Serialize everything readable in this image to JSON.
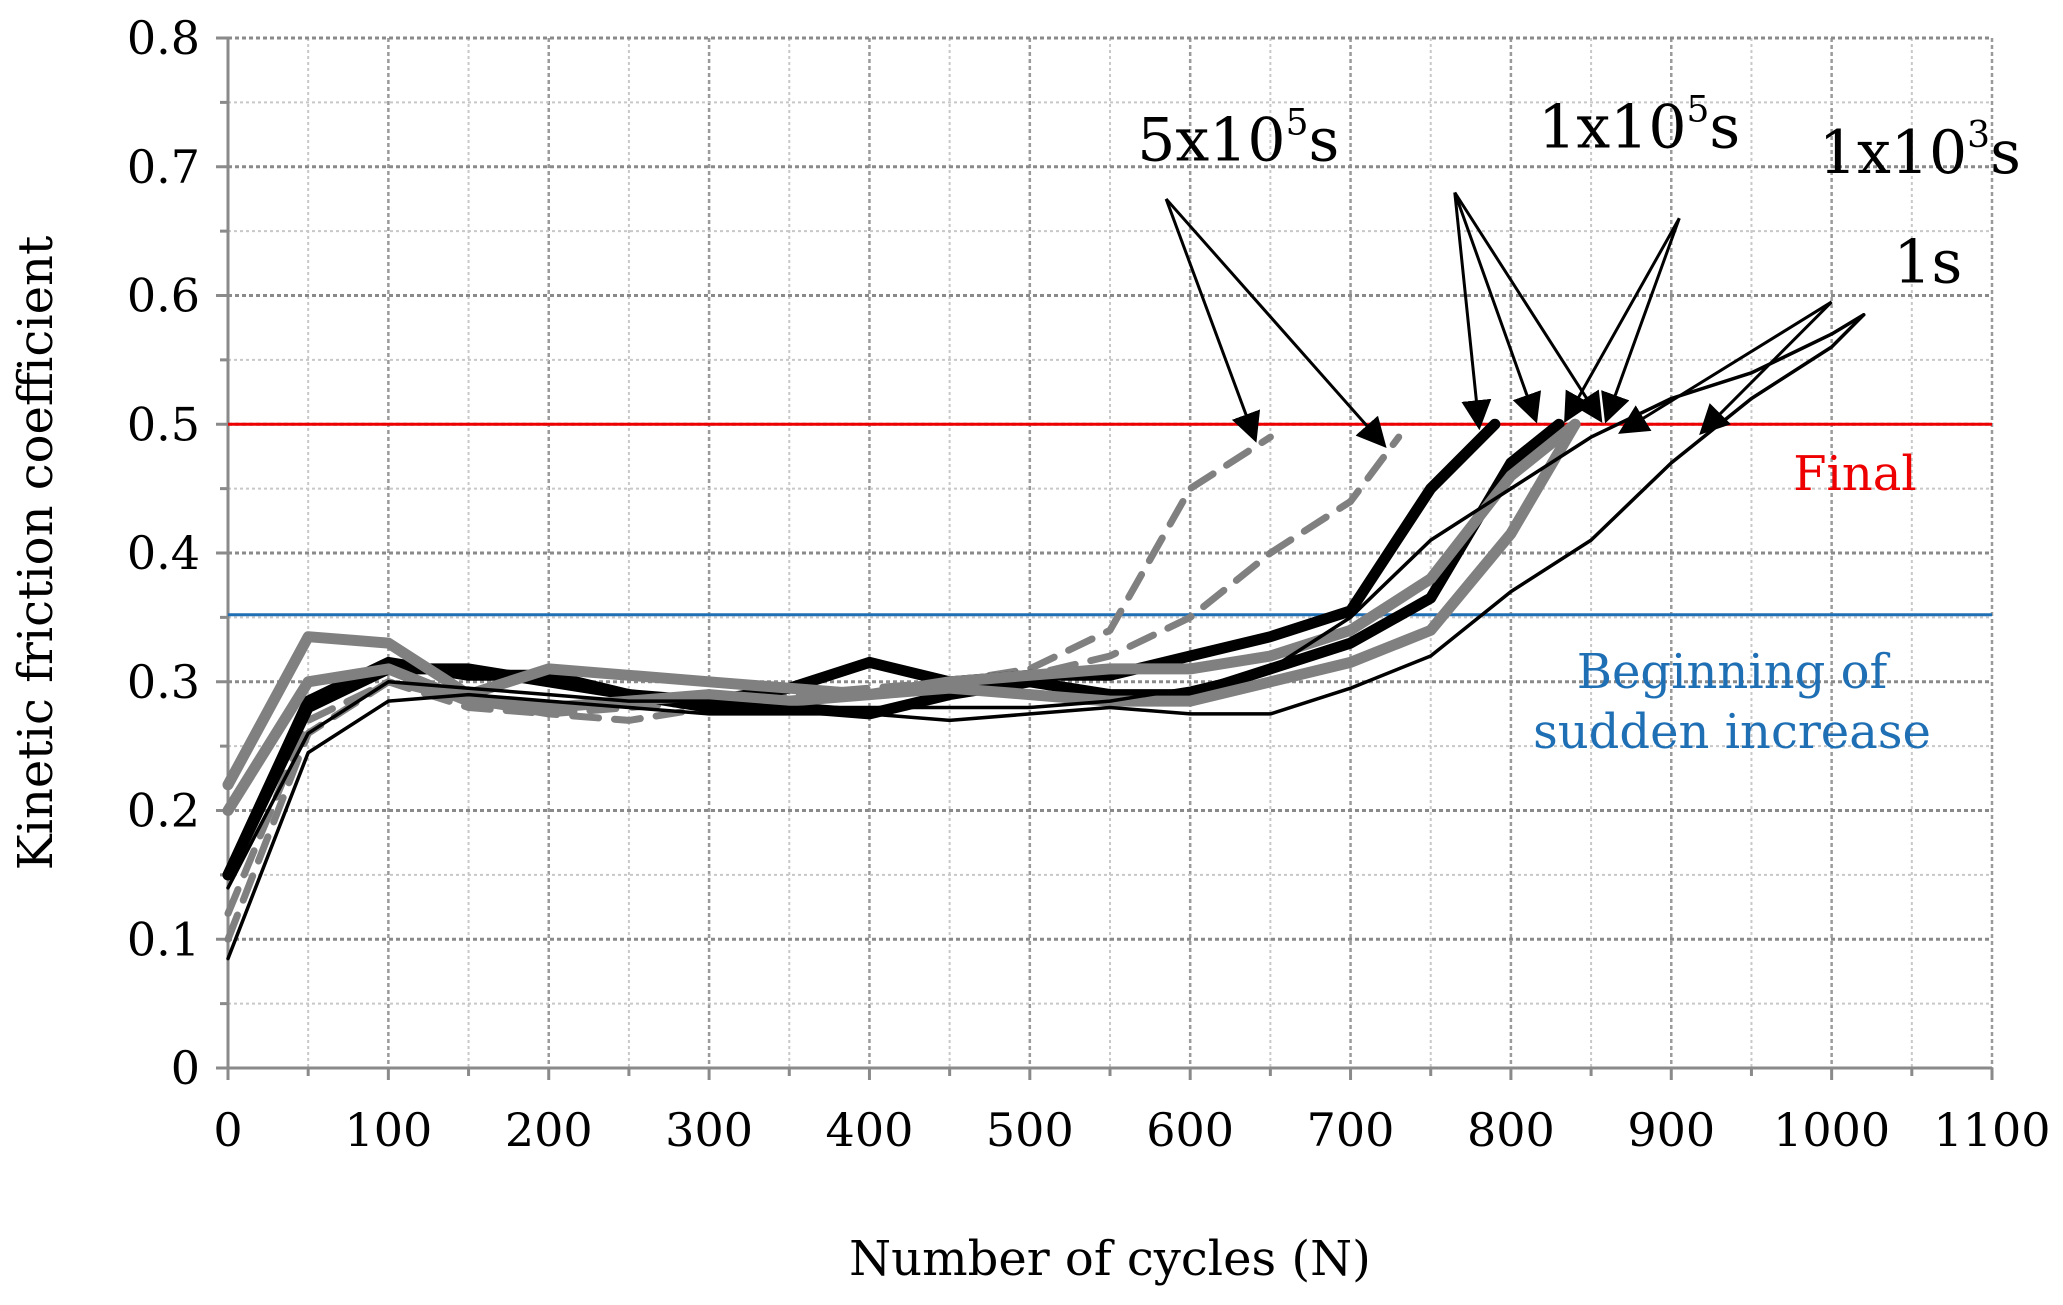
{
  "chart_data": {
    "type": "line",
    "title": "",
    "xlabel": "Number of cycles (N)",
    "ylabel": "Kinetic friction coefficient",
    "xlim": [
      0,
      1100
    ],
    "ylim": [
      0,
      0.8
    ],
    "x_ticks": [
      "0",
      "100",
      "200",
      "300",
      "400",
      "500",
      "600",
      "700",
      "800",
      "900",
      "1000",
      "1100"
    ],
    "y_ticks": [
      "0",
      "0.1",
      "0.2",
      "0.3",
      "0.4",
      "0.5",
      "0.6",
      "0.7",
      "0.8"
    ],
    "grid": true,
    "colors": {
      "black": "#000000",
      "gray": "#808080",
      "final": "#ee0000",
      "beginning": "#1f6fb5"
    },
    "reference_lines": [
      {
        "name": "Final",
        "y": 0.5,
        "color": "#ee0000",
        "label_lines": [
          "Final"
        ]
      },
      {
        "name": "Beginning of sudden increase",
        "y": 0.352,
        "color": "#1f6fb5",
        "label_lines": [
          "Beginning of",
          "sudden increase"
        ]
      }
    ],
    "series": [
      {
        "name": "5x10^5s (a)",
        "color": "#808080",
        "style": "dashed",
        "weight": "medium",
        "x": [
          0,
          50,
          100,
          150,
          200,
          250,
          300,
          350,
          400,
          450,
          500,
          550,
          600,
          650
        ],
        "y": [
          0.1,
          0.26,
          0.3,
          0.285,
          0.275,
          0.27,
          0.28,
          0.285,
          0.29,
          0.3,
          0.31,
          0.34,
          0.45,
          0.49
        ]
      },
      {
        "name": "5x10^5s (b)",
        "color": "#808080",
        "style": "dashed",
        "weight": "medium",
        "x": [
          0,
          50,
          100,
          150,
          200,
          250,
          300,
          350,
          400,
          450,
          500,
          550,
          600,
          650,
          700,
          730
        ],
        "y": [
          0.12,
          0.27,
          0.3,
          0.28,
          0.275,
          0.28,
          0.285,
          0.29,
          0.295,
          0.3,
          0.305,
          0.32,
          0.35,
          0.4,
          0.44,
          0.49
        ]
      },
      {
        "name": "1x10^5s (a)",
        "color": "#000000",
        "style": "solid",
        "weight": "heavy",
        "x": [
          0,
          50,
          100,
          150,
          200,
          250,
          300,
          350,
          400,
          450,
          500,
          550,
          600,
          650,
          700,
          750,
          790
        ],
        "y": [
          0.15,
          0.28,
          0.31,
          0.31,
          0.3,
          0.29,
          0.285,
          0.295,
          0.315,
          0.3,
          0.305,
          0.305,
          0.32,
          0.335,
          0.355,
          0.45,
          0.5
        ]
      },
      {
        "name": "1x10^5s (b)",
        "color": "#000000",
        "style": "solid",
        "weight": "heavy",
        "x": [
          0,
          50,
          100,
          150,
          200,
          250,
          300,
          350,
          400,
          450,
          500,
          550,
          600,
          650,
          700,
          750,
          800,
          830
        ],
        "y": [
          0.15,
          0.285,
          0.315,
          0.305,
          0.305,
          0.29,
          0.28,
          0.28,
          0.275,
          0.29,
          0.3,
          0.29,
          0.29,
          0.31,
          0.33,
          0.365,
          0.47,
          0.5
        ]
      },
      {
        "name": "1x10^3s (a)",
        "color": "#808080",
        "style": "solid",
        "weight": "heavy",
        "x": [
          0,
          50,
          100,
          150,
          200,
          250,
          300,
          350,
          400,
          450,
          500,
          550,
          600,
          650,
          700,
          750,
          800,
          840
        ],
        "y": [
          0.22,
          0.335,
          0.33,
          0.29,
          0.31,
          0.305,
          0.3,
          0.295,
          0.29,
          0.3,
          0.305,
          0.31,
          0.31,
          0.32,
          0.34,
          0.38,
          0.46,
          0.5
        ]
      },
      {
        "name": "1x10^3s (b)",
        "color": "#808080",
        "style": "solid",
        "weight": "heavy",
        "x": [
          0,
          50,
          100,
          150,
          200,
          250,
          300,
          350,
          400,
          450,
          500,
          550,
          600,
          650,
          700,
          750,
          800,
          840
        ],
        "y": [
          0.2,
          0.3,
          0.31,
          0.285,
          0.28,
          0.285,
          0.29,
          0.285,
          0.29,
          0.295,
          0.29,
          0.285,
          0.285,
          0.3,
          0.315,
          0.34,
          0.415,
          0.5
        ]
      },
      {
        "name": "1s (a)",
        "color": "#000000",
        "style": "solid",
        "weight": "light",
        "x": [
          0,
          50,
          100,
          150,
          200,
          250,
          300,
          350,
          400,
          450,
          500,
          550,
          600,
          650,
          700,
          750,
          800,
          850,
          900,
          950,
          1000,
          1020
        ],
        "y": [
          0.14,
          0.26,
          0.3,
          0.295,
          0.29,
          0.285,
          0.285,
          0.28,
          0.28,
          0.28,
          0.28,
          0.285,
          0.295,
          0.31,
          0.35,
          0.41,
          0.45,
          0.49,
          0.52,
          0.54,
          0.57,
          0.585
        ]
      },
      {
        "name": "1s (b)",
        "color": "#000000",
        "style": "solid",
        "weight": "light",
        "x": [
          0,
          50,
          100,
          150,
          200,
          250,
          300,
          350,
          400,
          450,
          500,
          550,
          600,
          650,
          700,
          750,
          800,
          850,
          900,
          950,
          1000,
          1020
        ],
        "y": [
          0.085,
          0.245,
          0.285,
          0.29,
          0.285,
          0.28,
          0.275,
          0.275,
          0.275,
          0.27,
          0.275,
          0.28,
          0.275,
          0.275,
          0.295,
          0.32,
          0.37,
          0.41,
          0.47,
          0.52,
          0.56,
          0.585
        ]
      }
    ],
    "annotations": [
      {
        "base": "5x10",
        "sup": "5",
        "tail": "s",
        "anchor": [
          630,
          0.705
        ],
        "from": [
          585,
          0.675
        ],
        "targets": [
          [
            640,
            0.49
          ],
          [
            720,
            0.485
          ]
        ]
      },
      {
        "base": "1x10",
        "sup": "5",
        "tail": "s",
        "anchor": [
          880,
          0.715
        ],
        "from": [
          765,
          0.68
        ],
        "targets": [
          [
            780,
            0.5
          ],
          [
            815,
            0.505
          ],
          [
            855,
            0.505
          ]
        ]
      },
      {
        "base": "1x10",
        "sup": "3",
        "tail": "s",
        "anchor": [
          1055,
          0.695
        ],
        "from": [
          905,
          0.66
        ],
        "targets": [
          [
            835,
            0.505
          ],
          [
            860,
            0.505
          ]
        ]
      },
      {
        "base": "1s",
        "sup": "",
        "tail": "",
        "anchor": [
          1060,
          0.61
        ],
        "from": [
          1000,
          0.595
        ],
        "targets": [
          [
            870,
            0.495
          ],
          [
            920,
            0.495
          ]
        ]
      }
    ]
  }
}
